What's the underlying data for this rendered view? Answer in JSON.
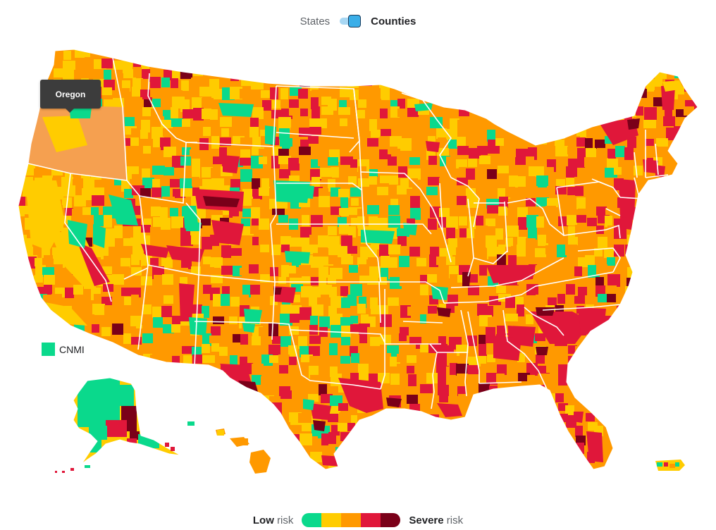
{
  "toggle": {
    "states_label": "States",
    "counties_label": "Counties"
  },
  "tooltip": {
    "label": "Oregon"
  },
  "territory": {
    "label": "CNMI",
    "color": "#0ad98c"
  },
  "legend": {
    "low_strong": "Low",
    "low_suffix": "risk",
    "severe_strong": "Severe",
    "severe_suffix": "risk",
    "colors": [
      "#0ad98c",
      "#ffcc00",
      "#ff9900",
      "#e0173a",
      "#7a0019"
    ]
  },
  "palette": {
    "low": "#0ad98c",
    "moderate": "#ffcc00",
    "high": "#ff9900",
    "very_high": "#e0173a",
    "severe": "#7a0019",
    "hover": "#f5a050"
  }
}
